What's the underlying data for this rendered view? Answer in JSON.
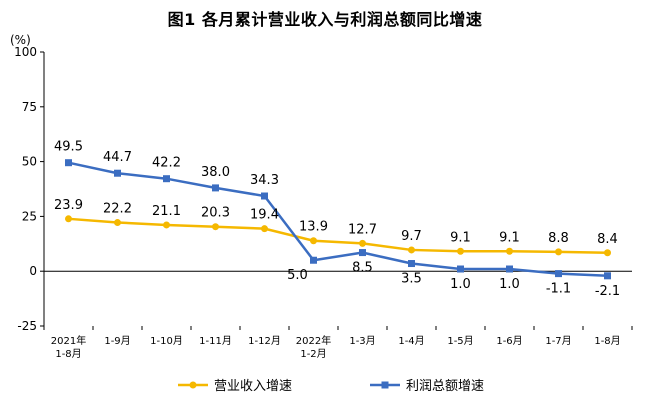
{
  "chart_data": {
    "type": "line",
    "title": "图1  各月累计营业收入与利润总额同比增速",
    "ylabel": "(%)",
    "ylim": [
      -25,
      100
    ],
    "yticks": [
      "100",
      "75",
      "50",
      "25",
      "0",
      "-25"
    ],
    "categories": [
      [
        "2021年",
        "1-8月"
      ],
      [
        "1-9月"
      ],
      [
        "1-10月"
      ],
      [
        "1-11月"
      ],
      [
        "1-12月"
      ],
      [
        "2022年",
        "1-2月"
      ],
      [
        "1-3月"
      ],
      [
        "1-4月"
      ],
      [
        "1-5月"
      ],
      [
        "1-6月"
      ],
      [
        "1-7月"
      ],
      [
        "1-8月"
      ]
    ],
    "series": [
      {
        "name": "营业收入增速",
        "color": "#F5B800",
        "values": [
          23.9,
          22.2,
          21.1,
          20.3,
          19.4,
          13.9,
          12.7,
          9.7,
          9.1,
          9.1,
          8.8,
          8.4
        ],
        "labels": [
          "23.9",
          "22.2",
          "21.1",
          "20.3",
          "19.4",
          "13.9",
          "12.7",
          "9.7",
          "9.1",
          "9.1",
          "8.8",
          "8.4"
        ]
      },
      {
        "name": "利润总额增速",
        "color": "#3B6DC1",
        "values": [
          49.5,
          44.7,
          42.2,
          38.0,
          34.3,
          5.0,
          8.5,
          3.5,
          1.0,
          1.0,
          -1.1,
          -2.1
        ],
        "labels": [
          "49.5",
          "44.7",
          "42.2",
          "38.0",
          "34.3",
          "5.0",
          "8.5",
          "3.5",
          "1.0",
          "1.0",
          "-1.1",
          "-2.1"
        ]
      }
    ],
    "legend_position": "bottom"
  }
}
